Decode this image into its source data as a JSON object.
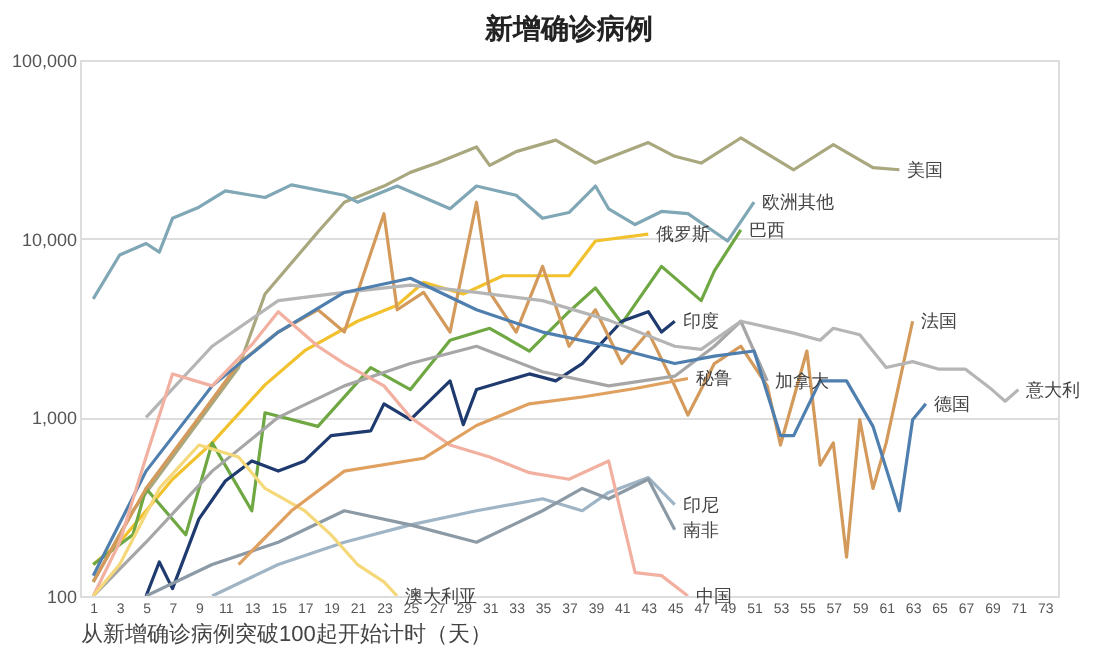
{
  "chart_data": {
    "type": "line",
    "title": "新增确诊病例",
    "xlabel": "从新增确诊病例突破100起开始计时（天）",
    "log": "y",
    "grid": "y",
    "marker": "none",
    "line_style": "solid",
    "xlim": [
      0,
      74
    ],
    "xticks": [
      1,
      3,
      5,
      7,
      9,
      11,
      13,
      15,
      17,
      19,
      21,
      23,
      25,
      27,
      29,
      31,
      33,
      35,
      37,
      39,
      41,
      43,
      45,
      47,
      49,
      51,
      53,
      55,
      57,
      59,
      61,
      63,
      65,
      67,
      69,
      71,
      73
    ],
    "ylim": [
      100,
      100000
    ],
    "yticks": [
      {
        "value": 100,
        "label": "100"
      },
      {
        "value": 1000,
        "label": "1,000"
      },
      {
        "value": 10000,
        "label": "10,000"
      },
      {
        "value": 100000,
        "label": "100,000"
      }
    ],
    "series": [
      {
        "name": "美国",
        "color": "#a8a77e",
        "x": [
          1,
          4,
          7,
          10,
          12,
          14,
          18,
          20,
          23,
          25,
          27,
          30,
          31,
          33,
          36,
          39,
          43,
          45,
          47,
          50,
          54,
          57,
          60,
          62
        ],
        "values": [
          120,
          300,
          600,
          1200,
          1900,
          4900,
          10900,
          16000,
          19700,
          23500,
          26500,
          32600,
          25700,
          30700,
          35600,
          26500,
          34500,
          28900,
          26500,
          36600,
          24300,
          33600,
          25000,
          24300
        ]
      },
      {
        "name": "欧洲其他",
        "color": "#7fa7b5",
        "x": [
          1,
          3,
          5,
          6,
          7,
          9,
          11,
          14,
          16,
          20,
          21,
          24,
          28,
          30,
          33,
          35,
          37,
          39,
          40,
          42,
          44,
          46,
          49,
          51
        ],
        "values": [
          4600,
          8100,
          9400,
          8400,
          13000,
          15000,
          18500,
          17000,
          20000,
          17500,
          16000,
          19700,
          14700,
          19700,
          17500,
          13000,
          14000,
          19700,
          14700,
          12000,
          14200,
          13800,
          9700,
          16000
        ]
      },
      {
        "name": "俄罗斯",
        "color": "#f2c12e",
        "x": [
          1,
          3,
          5,
          7,
          10,
          14,
          17,
          21,
          24,
          26,
          29,
          32,
          35,
          37,
          39,
          43
        ],
        "values": [
          150,
          200,
          300,
          450,
          720,
          1520,
          2360,
          3450,
          4240,
          5700,
          4900,
          6200,
          6200,
          6200,
          9700,
          10600
        ]
      },
      {
        "name": "巴西",
        "color": "#6fa842",
        "x": [
          1,
          4,
          5,
          8,
          10,
          13,
          14,
          18,
          22,
          25,
          28,
          31,
          34,
          37,
          39,
          41,
          44,
          47,
          48,
          50
        ],
        "values": [
          150,
          220,
          400,
          220,
          720,
          300,
          1060,
          890,
          1900,
          1430,
          2700,
          3150,
          2350,
          3900,
          5300,
          3360,
          7000,
          4500,
          6600,
          11200
        ]
      },
      {
        "name": "印度",
        "color": "#1f3a6e",
        "x": [
          5,
          6,
          7,
          9,
          11,
          13,
          15,
          17,
          19,
          22,
          23,
          25,
          28,
          29,
          30,
          34,
          36,
          38,
          41,
          43,
          44,
          45
        ],
        "values": [
          100,
          155,
          110,
          270,
          440,
          570,
          500,
          570,
          790,
          840,
          1190,
          970,
          1600,
          910,
          1430,
          1750,
          1600,
          2000,
          3450,
          3900,
          3000,
          3450
        ]
      },
      {
        "name": "法国",
        "color": "#d39a5b",
        "x": [
          1,
          5,
          9,
          12,
          15,
          18,
          20,
          23,
          24,
          26,
          28,
          30,
          31,
          33,
          35,
          37,
          39,
          41,
          43,
          45,
          46,
          48,
          50,
          52,
          53,
          55,
          56,
          57,
          58,
          59,
          60,
          61,
          63
        ],
        "values": [
          120,
          400,
          1000,
          2000,
          3000,
          4000,
          3000,
          13800,
          4000,
          5000,
          3000,
          16000,
          5000,
          3000,
          7000,
          2500,
          4000,
          2000,
          3000,
          1500,
          1030,
          2000,
          2500,
          1500,
          700,
          2350,
          540,
          720,
          165,
          970,
          400,
          720,
          3450
        ]
      },
      {
        "name": "加拿大",
        "color": "#a6a6a6",
        "x": [
          1,
          5,
          10,
          15,
          20,
          25,
          30,
          35,
          40,
          45,
          48,
          50,
          52
        ],
        "values": [
          100,
          200,
          500,
          1000,
          1500,
          2000,
          2500,
          1800,
          1500,
          1700,
          2500,
          3450,
          1600
        ]
      },
      {
        "name": "意大利",
        "color": "#b5b5b5",
        "x": [
          5,
          10,
          15,
          20,
          25,
          30,
          35,
          40,
          45,
          47,
          50,
          54,
          56,
          57,
          59,
          61,
          63,
          65,
          67,
          69,
          70,
          71
        ],
        "values": [
          1000,
          2500,
          4500,
          5000,
          5500,
          5000,
          4500,
          3500,
          2500,
          2400,
          3450,
          2960,
          2700,
          3150,
          2900,
          1900,
          2050,
          1860,
          1860,
          1430,
          1230,
          1430
        ]
      },
      {
        "name": "德国",
        "color": "#4e7fae",
        "x": [
          1,
          5,
          10,
          15,
          20,
          25,
          30,
          35,
          40,
          45,
          48,
          51,
          53,
          54,
          56,
          58,
          60,
          62,
          63,
          64
        ],
        "values": [
          130,
          500,
          1500,
          3000,
          5000,
          6000,
          4000,
          3000,
          2500,
          2000,
          2200,
          2350,
          790,
          790,
          1600,
          1600,
          890,
          300,
          970,
          1190
        ]
      },
      {
        "name": "印尼",
        "color": "#9fb4c4",
        "x": [
          10,
          15,
          20,
          25,
          30,
          35,
          38,
          40,
          43,
          45
        ],
        "values": [
          100,
          150,
          200,
          250,
          300,
          350,
          300,
          380,
          460,
          325
        ]
      },
      {
        "name": "南非",
        "color": "#8c9aa6",
        "x": [
          5,
          10,
          15,
          20,
          25,
          30,
          35,
          38,
          40,
          43,
          45
        ],
        "values": [
          100,
          150,
          200,
          300,
          250,
          200,
          300,
          400,
          350,
          450,
          235
        ]
      },
      {
        "name": "中国",
        "color": "#f2b0a0",
        "x": [
          1,
          3,
          5,
          7,
          10,
          13,
          15,
          18,
          20,
          23,
          25,
          28,
          31,
          34,
          37,
          40,
          42,
          44,
          46
        ],
        "values": [
          100,
          200,
          600,
          1750,
          1500,
          2550,
          3900,
          2500,
          2000,
          1500,
          1000,
          700,
          600,
          490,
          450,
          570,
          135,
          130,
          100
        ]
      },
      {
        "name": "澳大利亚",
        "color": "#f5d87a",
        "x": [
          1,
          3,
          6,
          9,
          12,
          14,
          17,
          19,
          21,
          23,
          24
        ],
        "values": [
          100,
          150,
          400,
          700,
          600,
          400,
          300,
          220,
          150,
          120,
          100
        ]
      },
      {
        "name": "秘鲁",
        "color": "#e0a060",
        "x": [
          12,
          16,
          20,
          26,
          30,
          34,
          38,
          42,
          46
        ],
        "values": [
          150,
          300,
          500,
          590,
          900,
          1190,
          1300,
          1450,
          1650
        ]
      }
    ]
  }
}
